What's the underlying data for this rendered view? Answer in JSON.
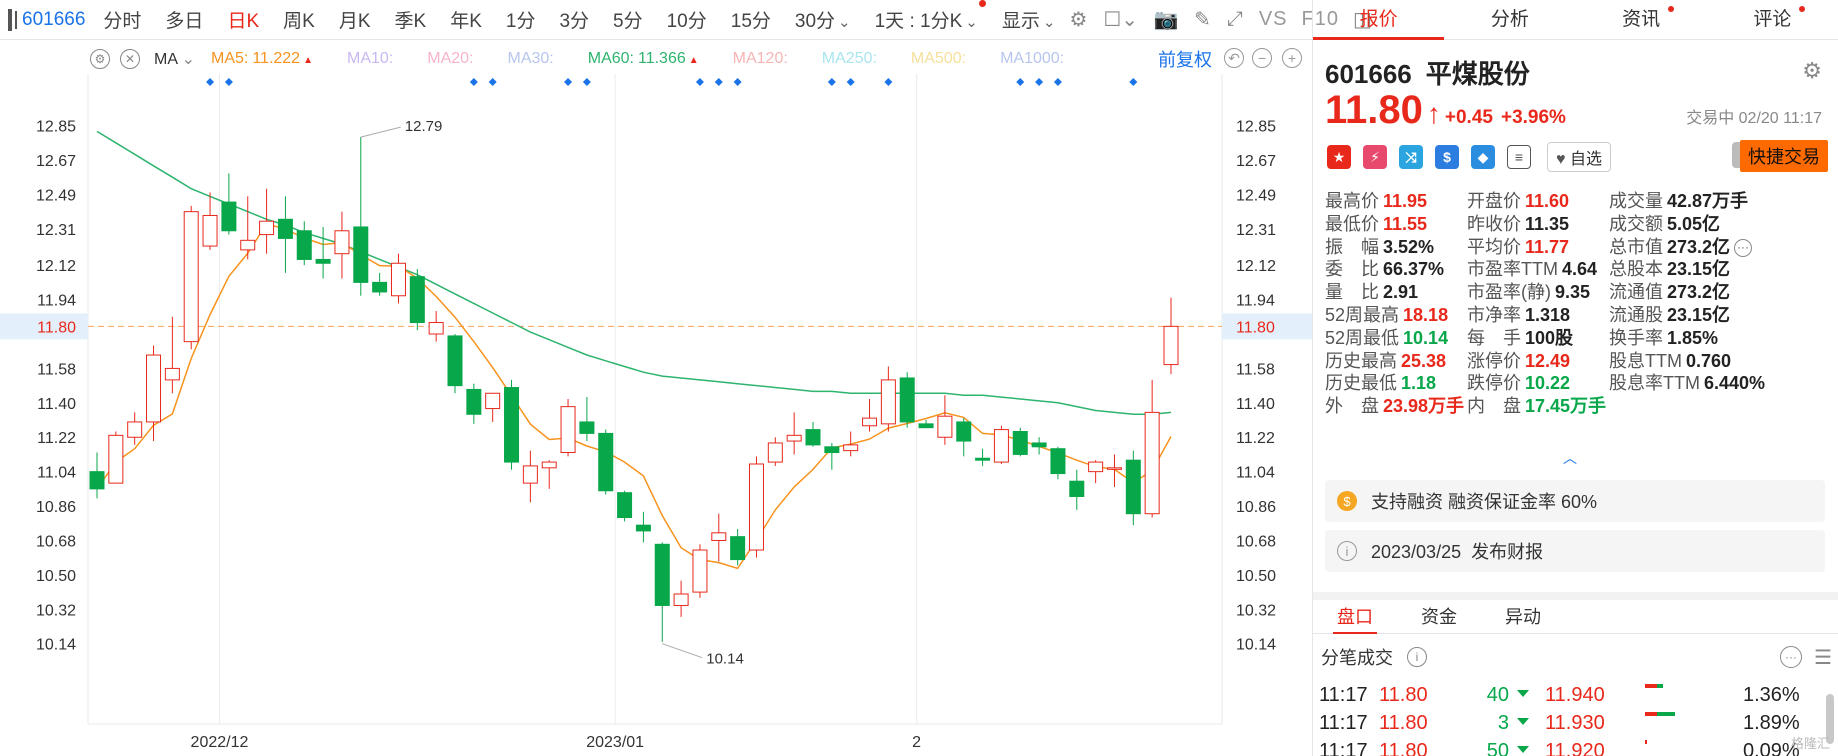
{
  "toolbar": {
    "code": "601666",
    "items": [
      "分时",
      "多日",
      "日K",
      "周K",
      "月K",
      "季K",
      "年K",
      "1分",
      "3分",
      "5分",
      "10分",
      "15分",
      "30分"
    ],
    "active": "日K",
    "range": "1天 : 1分K",
    "display": "显示",
    "vs": "VS",
    "f10": "F10"
  },
  "ma_bar": {
    "label": "MA",
    "items": [
      {
        "text": "MA5:",
        "value": "11.222",
        "color": "#f7931e",
        "up": true
      },
      {
        "text": "MA10:",
        "value": "",
        "color": "#c9b8f3",
        "up": false
      },
      {
        "text": "MA20:",
        "value": "",
        "color": "#f7b4c8",
        "up": false
      },
      {
        "text": "MA30:",
        "value": "",
        "color": "#b7c6ee",
        "up": false
      },
      {
        "text": "MA60:",
        "value": "11.366",
        "color": "#2db46e",
        "up": true
      },
      {
        "text": "MA120:",
        "value": "",
        "color": "#f6b4b4",
        "up": false
      },
      {
        "text": "MA250:",
        "value": "",
        "color": "#a8e6ee",
        "up": false
      },
      {
        "text": "MA500:",
        "value": "",
        "color": "#f6e09a",
        "up": false
      },
      {
        "text": "MA1000:",
        "value": "",
        "color": "#b7c6ee",
        "up": false
      }
    ],
    "adjust": "前复权"
  },
  "chart_data": {
    "type": "candlestick",
    "y_ticks": [
      "12.85",
      "12.67",
      "12.49",
      "12.31",
      "12.12",
      "11.94",
      "11.80",
      "11.58",
      "11.40",
      "11.22",
      "11.04",
      "10.86",
      "10.68",
      "10.50",
      "10.32",
      "10.14"
    ],
    "x_labels": [
      "2022/12",
      "2023/01",
      "2"
    ],
    "current_price": 11.8,
    "annotations": [
      {
        "text": "12.79",
        "value": 12.79
      },
      {
        "text": "10.14",
        "value": 10.14
      }
    ],
    "candles": [
      {
        "o": 11.04,
        "h": 11.14,
        "l": 10.9,
        "c": 10.95
      },
      {
        "o": 10.98,
        "h": 11.25,
        "l": 10.98,
        "c": 11.23
      },
      {
        "o": 11.22,
        "h": 11.35,
        "l": 11.18,
        "c": 11.3
      },
      {
        "o": 11.3,
        "h": 11.7,
        "l": 11.2,
        "c": 11.65
      },
      {
        "o": 11.52,
        "h": 11.85,
        "l": 11.45,
        "c": 11.58
      },
      {
        "o": 11.72,
        "h": 12.43,
        "l": 11.68,
        "c": 12.4
      },
      {
        "o": 12.22,
        "h": 12.5,
        "l": 12.2,
        "c": 12.38
      },
      {
        "o": 12.45,
        "h": 12.6,
        "l": 12.28,
        "c": 12.3
      },
      {
        "o": 12.2,
        "h": 12.48,
        "l": 12.15,
        "c": 12.25
      },
      {
        "o": 12.28,
        "h": 12.52,
        "l": 12.18,
        "c": 12.35
      },
      {
        "o": 12.36,
        "h": 12.48,
        "l": 12.08,
        "c": 12.26
      },
      {
        "o": 12.3,
        "h": 12.35,
        "l": 12.12,
        "c": 12.15
      },
      {
        "o": 12.15,
        "h": 12.32,
        "l": 12.05,
        "c": 12.13
      },
      {
        "o": 12.18,
        "h": 12.4,
        "l": 12.05,
        "c": 12.3
      },
      {
        "o": 12.32,
        "h": 12.79,
        "l": 11.96,
        "c": 12.03
      },
      {
        "o": 12.03,
        "h": 12.08,
        "l": 11.96,
        "c": 11.98
      },
      {
        "o": 11.96,
        "h": 12.18,
        "l": 11.92,
        "c": 12.13
      },
      {
        "o": 12.06,
        "h": 12.1,
        "l": 11.78,
        "c": 11.82
      },
      {
        "o": 11.76,
        "h": 11.88,
        "l": 11.72,
        "c": 11.82
      },
      {
        "o": 11.75,
        "h": 11.76,
        "l": 11.45,
        "c": 11.49
      },
      {
        "o": 11.47,
        "h": 11.5,
        "l": 11.29,
        "c": 11.34
      },
      {
        "o": 11.37,
        "h": 11.45,
        "l": 11.3,
        "c": 11.45
      },
      {
        "o": 11.48,
        "h": 11.52,
        "l": 11.05,
        "c": 11.09
      },
      {
        "o": 10.98,
        "h": 11.15,
        "l": 10.88,
        "c": 11.07
      },
      {
        "o": 11.06,
        "h": 11.1,
        "l": 10.95,
        "c": 11.09
      },
      {
        "o": 11.14,
        "h": 11.42,
        "l": 11.12,
        "c": 11.38
      },
      {
        "o": 11.3,
        "h": 11.43,
        "l": 11.2,
        "c": 11.24
      },
      {
        "o": 11.24,
        "h": 11.26,
        "l": 10.92,
        "c": 10.94
      },
      {
        "o": 10.93,
        "h": 10.94,
        "l": 10.78,
        "c": 10.8
      },
      {
        "o": 10.76,
        "h": 10.83,
        "l": 10.67,
        "c": 10.73
      },
      {
        "o": 10.66,
        "h": 10.67,
        "l": 10.15,
        "c": 10.34
      },
      {
        "o": 10.34,
        "h": 10.47,
        "l": 10.28,
        "c": 10.4
      },
      {
        "o": 10.41,
        "h": 10.66,
        "l": 10.38,
        "c": 10.63
      },
      {
        "o": 10.68,
        "h": 10.82,
        "l": 10.57,
        "c": 10.72
      },
      {
        "o": 10.7,
        "h": 10.74,
        "l": 10.55,
        "c": 10.58
      },
      {
        "o": 10.63,
        "h": 11.12,
        "l": 10.59,
        "c": 11.08
      },
      {
        "o": 11.09,
        "h": 11.22,
        "l": 11.07,
        "c": 11.19
      },
      {
        "o": 11.2,
        "h": 11.35,
        "l": 11.13,
        "c": 11.23
      },
      {
        "o": 11.26,
        "h": 11.3,
        "l": 11.17,
        "c": 11.18
      },
      {
        "o": 11.17,
        "h": 11.19,
        "l": 11.05,
        "c": 11.14
      },
      {
        "o": 11.15,
        "h": 11.25,
        "l": 11.12,
        "c": 11.18
      },
      {
        "o": 11.28,
        "h": 11.42,
        "l": 11.25,
        "c": 11.32
      },
      {
        "o": 11.29,
        "h": 11.59,
        "l": 11.25,
        "c": 11.52
      },
      {
        "o": 11.53,
        "h": 11.56,
        "l": 11.27,
        "c": 11.3
      },
      {
        "o": 11.29,
        "h": 11.31,
        "l": 11.27,
        "c": 11.27
      },
      {
        "o": 11.22,
        "h": 11.44,
        "l": 11.18,
        "c": 11.33
      },
      {
        "o": 11.3,
        "h": 11.32,
        "l": 11.12,
        "c": 11.2
      },
      {
        "o": 11.11,
        "h": 11.16,
        "l": 11.07,
        "c": 11.1
      },
      {
        "o": 11.09,
        "h": 11.28,
        "l": 11.08,
        "c": 11.26
      },
      {
        "o": 11.25,
        "h": 11.27,
        "l": 11.12,
        "c": 11.13
      },
      {
        "o": 11.19,
        "h": 11.22,
        "l": 11.13,
        "c": 11.17
      },
      {
        "o": 11.16,
        "h": 11.17,
        "l": 11.0,
        "c": 11.03
      },
      {
        "o": 10.99,
        "h": 11.05,
        "l": 10.84,
        "c": 10.91
      },
      {
        "o": 11.04,
        "h": 11.1,
        "l": 10.98,
        "c": 11.09
      },
      {
        "o": 11.06,
        "h": 11.13,
        "l": 10.96,
        "c": 11.06
      },
      {
        "o": 11.1,
        "h": 11.15,
        "l": 10.76,
        "c": 10.82
      },
      {
        "o": 10.82,
        "h": 11.52,
        "l": 10.8,
        "c": 11.35
      },
      {
        "o": 11.6,
        "h": 11.95,
        "l": 11.55,
        "c": 11.8
      }
    ]
  },
  "tabs": [
    "报价",
    "分析",
    "资讯",
    "评论"
  ],
  "active_tab": "报价",
  "stock": {
    "code": "601666",
    "name": "平煤股份",
    "price": "11.80",
    "change": "+0.45",
    "pct": "+3.96%",
    "time": "交易中 02/20 11:17",
    "fav": "自选",
    "quick": "快捷交易"
  },
  "quote": {
    "col1": [
      {
        "label": "最高价",
        "value": "11.95",
        "color": "red"
      },
      {
        "label": "最低价",
        "value": "11.55",
        "color": "red"
      },
      {
        "label": "振　幅",
        "value": "3.52%",
        "color": "dark"
      },
      {
        "label": "委　比",
        "value": "66.37%",
        "color": "dark"
      },
      {
        "label": "量　比",
        "value": "2.91",
        "color": "dark"
      },
      {
        "label": "52周最高",
        "value": "18.18",
        "color": "red"
      },
      {
        "label": "52周最低",
        "value": "10.14",
        "color": "green"
      },
      {
        "label": "历史最高",
        "value": "25.38",
        "color": "red"
      },
      {
        "label": "历史最低",
        "value": "1.18",
        "color": "green"
      },
      {
        "label": "外　盘",
        "value": "23.98万手",
        "color": "red"
      }
    ],
    "col2": [
      {
        "label": "开盘价",
        "value": "11.60",
        "color": "red"
      },
      {
        "label": "昨收价",
        "value": "11.35",
        "color": "dark"
      },
      {
        "label": "平均价",
        "value": "11.77",
        "color": "red"
      },
      {
        "label": "市盈率TTM",
        "value": "4.64",
        "color": "dark"
      },
      {
        "label": "市盈率(静)",
        "value": "9.35",
        "color": "dark"
      },
      {
        "label": "市净率",
        "value": "1.318",
        "color": "dark"
      },
      {
        "label": "每　手",
        "value": "100股",
        "color": "dark"
      },
      {
        "label": "涨停价",
        "value": "12.49",
        "color": "red"
      },
      {
        "label": "跌停价",
        "value": "10.22",
        "color": "green"
      },
      {
        "label": "内　盘",
        "value": "17.45万手",
        "color": "green"
      }
    ],
    "col3": [
      {
        "label": "成交量",
        "value": "42.87万手",
        "color": "dark"
      },
      {
        "label": "成交额",
        "value": "5.05亿",
        "color": "dark"
      },
      {
        "label": "总市值",
        "value": "273.2亿",
        "color": "dark"
      },
      {
        "label": "总股本",
        "value": "23.15亿",
        "color": "dark"
      },
      {
        "label": "流通值",
        "value": "273.2亿",
        "color": "dark"
      },
      {
        "label": "流通股",
        "value": "23.15亿",
        "color": "dark"
      },
      {
        "label": "换手率",
        "value": "1.85%",
        "color": "dark"
      },
      {
        "label": "股息TTM",
        "value": "0.760",
        "color": "dark"
      },
      {
        "label": "股息率TTM",
        "value": "6.440%",
        "color": "dark"
      }
    ]
  },
  "notices": [
    {
      "text": "支持融资 融资保证金率 60%"
    },
    {
      "text": "2023/03/25  发布财报"
    }
  ],
  "pk_tabs": [
    "盘口",
    "资金",
    "异动"
  ],
  "pk_active": "盘口",
  "fb_title": "分笔成交",
  "trades": [
    {
      "time": "11:17",
      "price": "11.80",
      "vol": "40",
      "bid": "11.940",
      "pct": "1.36%"
    },
    {
      "time": "11:17",
      "price": "11.80",
      "vol": "3",
      "bid": "11.930",
      "pct": "1.89%"
    },
    {
      "time": "11:17",
      "price": "11.80",
      "vol": "50",
      "bid": "11.920",
      "pct": "0.09%"
    }
  ],
  "watermark": "格隆汇"
}
